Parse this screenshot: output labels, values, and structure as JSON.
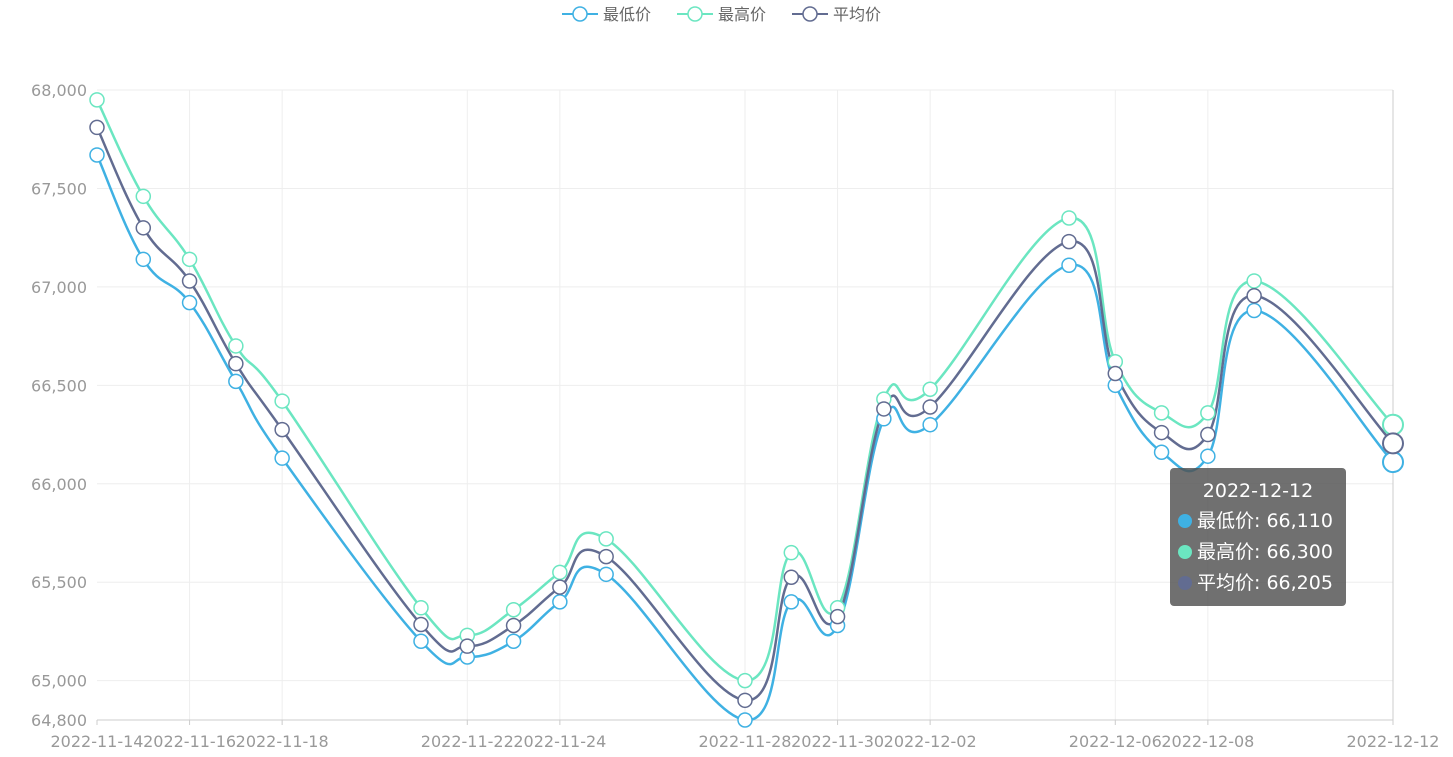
{
  "legend": {
    "items": [
      {
        "label": "最低价",
        "color": "#3fb1e3"
      },
      {
        "label": "最高价",
        "color": "#6be6c1"
      },
      {
        "label": "平均价",
        "color": "#626c91"
      }
    ]
  },
  "tooltip": {
    "title": "2022-12-12",
    "rows": [
      {
        "label": "最低价: 66,110",
        "color": "#3fb1e3"
      },
      {
        "label": "最高价: 66,300",
        "color": "#6be6c1"
      },
      {
        "label": "平均价: 66,205",
        "color": "#626c91"
      }
    ]
  },
  "chart_data": {
    "type": "line",
    "smooth": true,
    "grid": true,
    "legend_position": "top-center",
    "x": [
      "2022-11-14",
      "2022-11-15",
      "2022-11-16",
      "2022-11-17",
      "2022-11-18",
      "2022-11-21",
      "2022-11-22",
      "2022-11-23",
      "2022-11-24",
      "2022-11-25",
      "2022-11-28",
      "2022-11-29",
      "2022-11-30",
      "2022-12-01",
      "2022-12-02",
      "2022-12-05",
      "2022-12-06",
      "2022-12-07",
      "2022-12-08",
      "2022-12-09",
      "2022-12-12"
    ],
    "x_tick_labels": [
      "2022-11-14",
      "2022-11-16",
      "2022-11-18",
      "2022-11-22",
      "2022-11-24",
      "2022-11-28",
      "2022-11-30",
      "2022-12-02",
      "2022-12-06",
      "2022-12-08",
      "2022-12-12"
    ],
    "y_tick_labels": [
      "64,800",
      "65,000",
      "65,500",
      "66,000",
      "66,500",
      "67,000",
      "67,500",
      "68,000"
    ],
    "ylim": [
      64800,
      68000
    ],
    "series": [
      {
        "name": "最低价",
        "color": "#3fb1e3",
        "values": [
          67670,
          67140,
          66920,
          66520,
          66130,
          65200,
          65120,
          65200,
          65400,
          65540,
          64800,
          65400,
          65280,
          66330,
          66300,
          67110,
          66500,
          66160,
          66140,
          66880,
          66110
        ]
      },
      {
        "name": "最高价",
        "color": "#6be6c1",
        "values": [
          67950,
          67460,
          67140,
          66700,
          66420,
          65370,
          65230,
          65360,
          65550,
          65720,
          65000,
          65650,
          65370,
          66430,
          66480,
          67350,
          66620,
          66360,
          66360,
          67030,
          66300
        ]
      },
      {
        "name": "平均价",
        "color": "#626c91",
        "values": [
          67810,
          67300,
          67030,
          66610,
          66275,
          65285,
          65175,
          65280,
          65475,
          65630,
          64900,
          65525,
          65325,
          66380,
          66390,
          67230,
          66560,
          66260,
          66250,
          66955,
          66205
        ]
      }
    ]
  }
}
